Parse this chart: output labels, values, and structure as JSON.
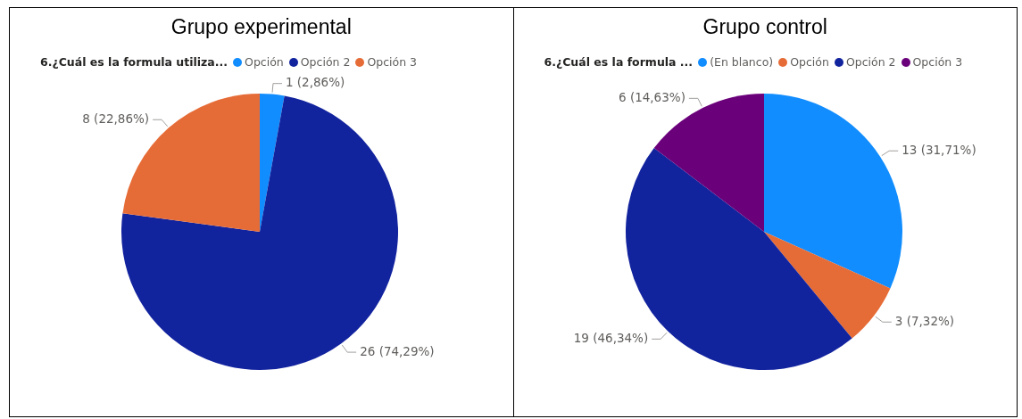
{
  "chart_data": [
    {
      "type": "pie",
      "title": "Grupo experimental",
      "legend_title": "6.¿Cuál es la formula utiliza...",
      "legend": "top",
      "categories": [
        "Opción",
        "Opción 2",
        "Opción 3"
      ],
      "values": [
        1,
        26,
        8
      ],
      "colors": [
        "#118dff",
        "#12239e",
        "#e66c37"
      ],
      "value_labels": [
        "1 (2,86%)",
        "26 (74,29%)",
        "8 (22,86%)"
      ]
    },
    {
      "type": "pie",
      "title": "Grupo control",
      "legend_title": "6.¿Cuál es la formula ...",
      "legend": "top",
      "categories": [
        "(En blanco)",
        "Opción",
        "Opción 2",
        "Opción 3"
      ],
      "values": [
        13,
        3,
        19,
        6
      ],
      "colors": [
        "#118dff",
        "#e66c37",
        "#12239e",
        "#6b007b"
      ],
      "value_labels": [
        "13 (31,71%)",
        "3 (7,32%)",
        "19 (46,34%)",
        "6 (14,63%)"
      ]
    }
  ]
}
